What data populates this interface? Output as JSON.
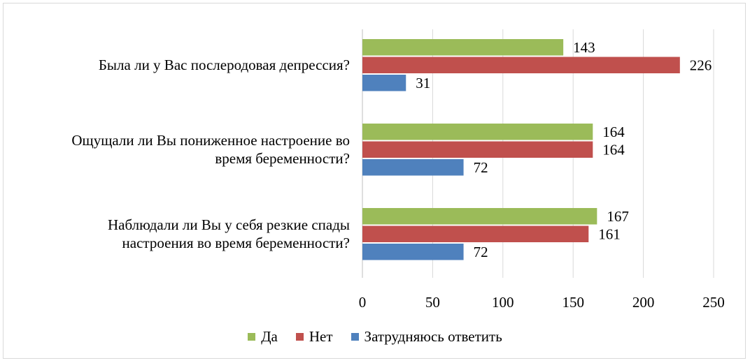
{
  "chart_data": {
    "type": "bar",
    "orientation": "horizontal",
    "title": "",
    "xlabel": "",
    "ylabel": "",
    "categories": [
      "Была ли у Вас послеродовая депрессия?",
      "Ощущали ли Вы пониженное настроение во время беременности?",
      "Наблюдали ли Вы у себя резкие спады настроения во время беременности?"
    ],
    "category_lines": [
      [
        "Была ли у Вас послеродовая депрессия?"
      ],
      [
        "Ощущали ли Вы пониженное настроение во",
        "время беременности?"
      ],
      [
        "Наблюдали ли Вы у себя резкие спады",
        "настроения во время беременности?"
      ]
    ],
    "series": [
      {
        "name": "Да",
        "color": "#9BBB59",
        "values": [
          143,
          164,
          167
        ]
      },
      {
        "name": "Нет",
        "color": "#C0504D",
        "values": [
          226,
          164,
          161
        ]
      },
      {
        "name": "Затрудняюсь ответить",
        "color": "#4F81BD",
        "values": [
          31,
          72,
          72
        ]
      }
    ],
    "xlim": [
      0,
      250
    ],
    "xticks": [
      "0",
      "50",
      "100",
      "150",
      "200",
      "250"
    ],
    "grid": true,
    "legend_position": "bottom"
  }
}
